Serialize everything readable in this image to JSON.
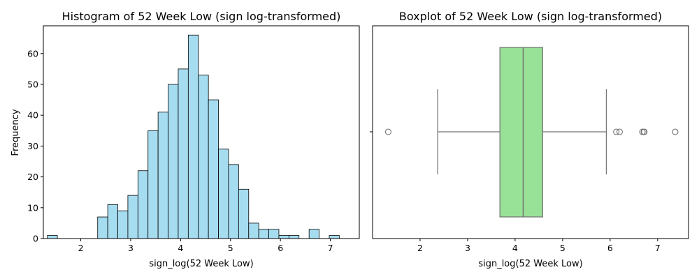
{
  "chart_data": [
    {
      "type": "histogram",
      "title": "Histogram of 52 Week Low (sign log-transformed)",
      "xlabel": "sign_log(52 Week Low)",
      "ylabel": "Frequency",
      "xlim": [
        1.25,
        7.58
      ],
      "ylim": [
        0,
        69
      ],
      "xticks": [
        2,
        3,
        4,
        5,
        6,
        7
      ],
      "yticks": [
        0,
        10,
        20,
        30,
        40,
        50,
        60
      ],
      "bin_start": 1.33,
      "bin_width": 0.2017,
      "counts": [
        1,
        0,
        0,
        0,
        0,
        7,
        11,
        9,
        14,
        22,
        35,
        41,
        50,
        55,
        66,
        53,
        45,
        29,
        24,
        16,
        5,
        3,
        3,
        1,
        1,
        0,
        3,
        0,
        1
      ],
      "bar_color": "#a6dcef",
      "edge_color": "#000000",
      "grid": false
    },
    {
      "type": "boxplot",
      "title": "Boxplot of 52 Week Low (sign log-transformed)",
      "xlabel": "sign_log(52 Week Low)",
      "xlim": [
        1.0,
        7.65
      ],
      "xticks": [
        2,
        3,
        4,
        5,
        6,
        7
      ],
      "whisker_low": 2.37,
      "q1": 3.68,
      "median": 4.17,
      "q3": 4.58,
      "whisker_high": 5.92,
      "outliers": [
        1.33,
        6.13,
        6.2,
        6.68,
        6.71,
        6.72,
        7.37
      ],
      "box_color": "#98e298",
      "line_color": "#707070",
      "grid": false
    }
  ]
}
